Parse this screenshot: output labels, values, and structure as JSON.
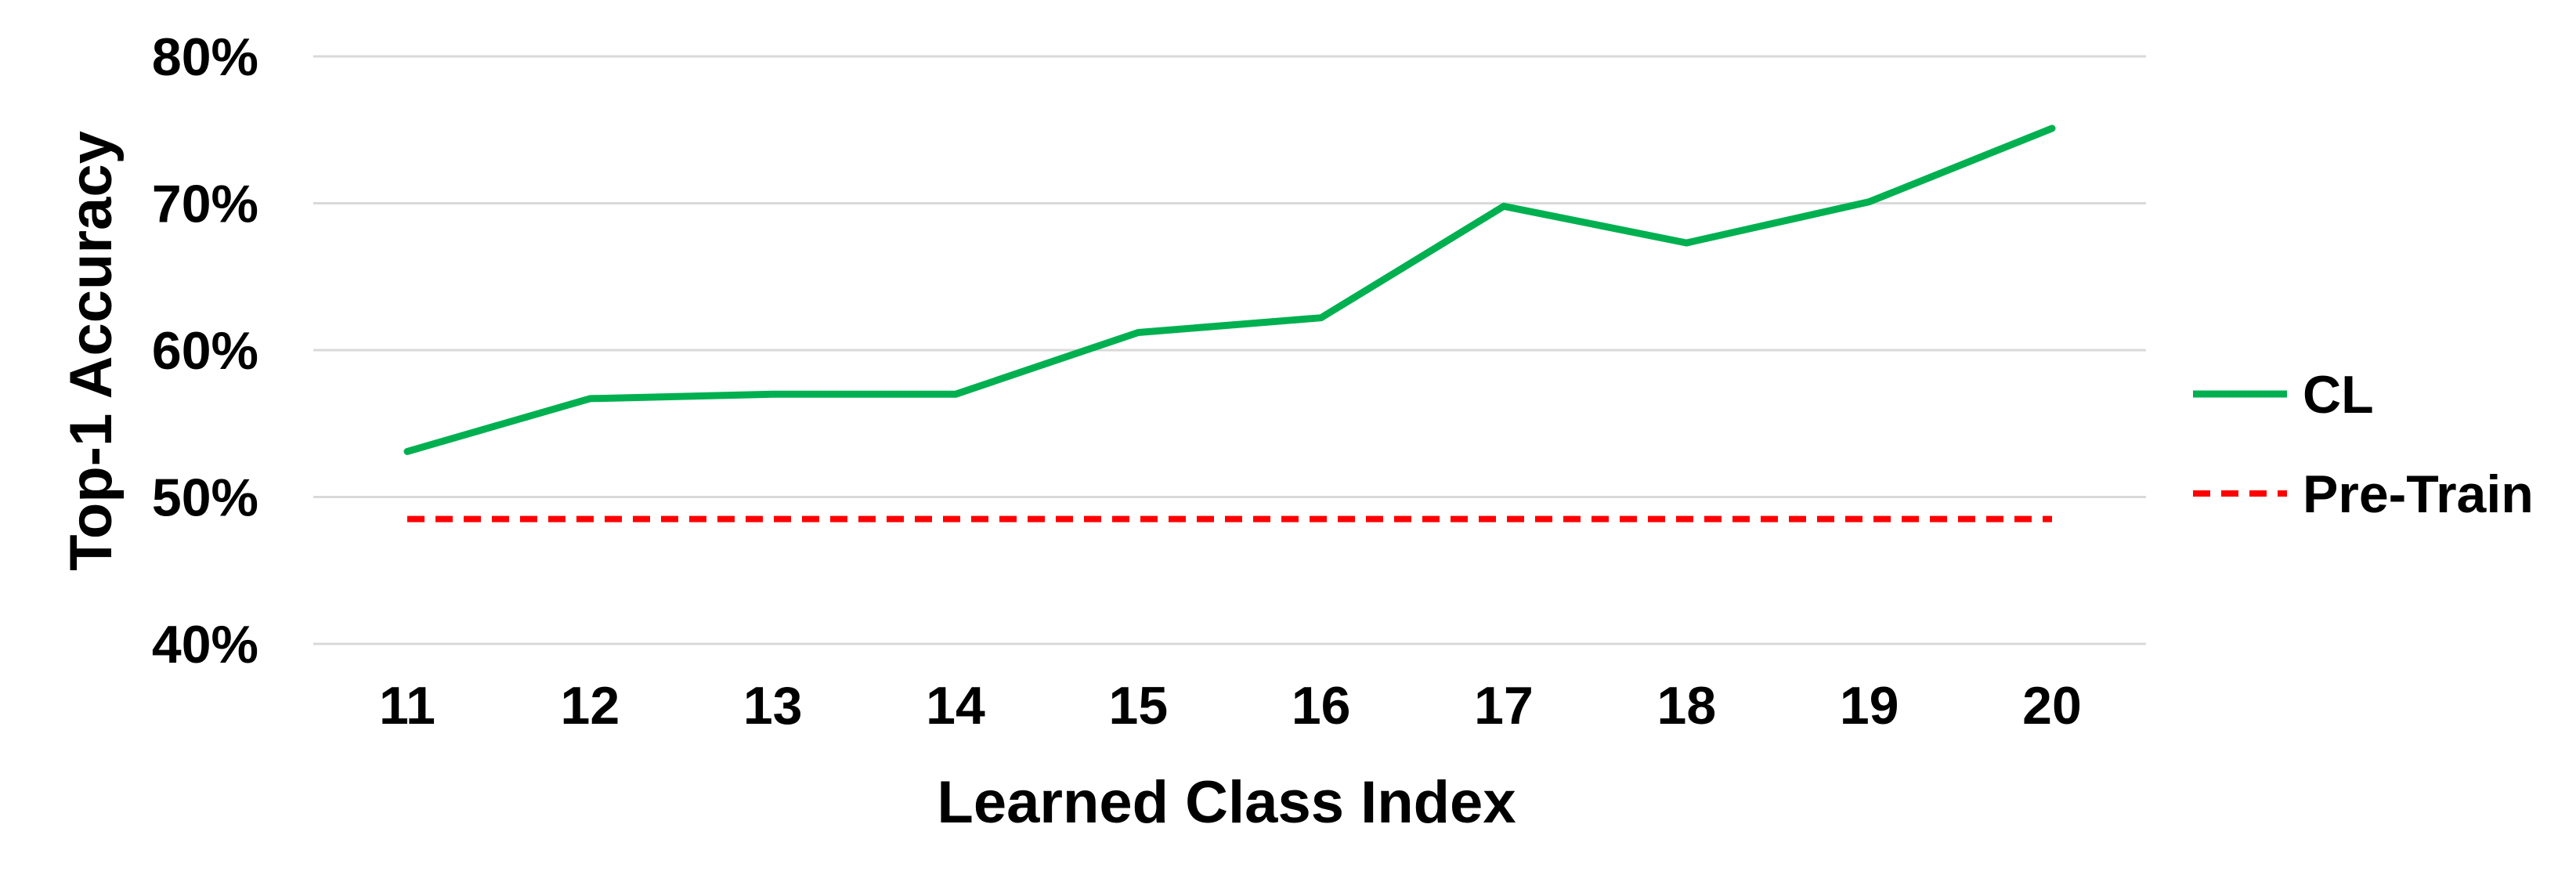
{
  "chart_data": {
    "type": "line",
    "title": "",
    "xlabel": "Learned Class Index",
    "ylabel": "Top-1 Accuracy",
    "x": [
      11,
      12,
      13,
      14,
      15,
      16,
      17,
      18,
      19,
      20
    ],
    "categories": [
      "11",
      "12",
      "13",
      "14",
      "15",
      "16",
      "17",
      "18",
      "19",
      "20"
    ],
    "y_ticks": [
      "40%",
      "50%",
      "60%",
      "70%",
      "80%"
    ],
    "ylim": [
      40,
      80
    ],
    "grid": true,
    "legend_position": "right",
    "series": [
      {
        "name": "CL",
        "values": [
          53.1,
          56.7,
          57.0,
          57.0,
          61.2,
          62.2,
          69.8,
          67.3,
          70.1,
          75.1
        ],
        "color": "#00b050",
        "line_style": "solid"
      },
      {
        "name": "Pre-Train",
        "values": [
          48.5,
          48.5,
          48.5,
          48.5,
          48.5,
          48.5,
          48.5,
          48.5,
          48.5,
          48.5
        ],
        "color": "#ff0000",
        "line_style": "dashed"
      }
    ]
  }
}
